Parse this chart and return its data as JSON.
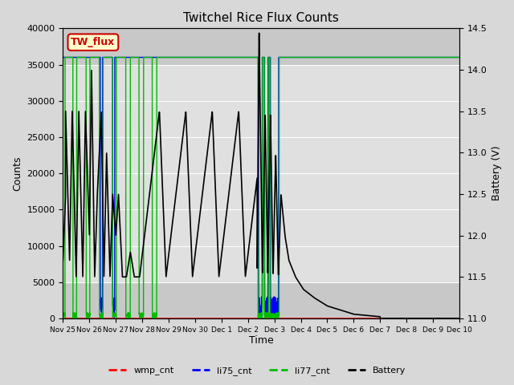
{
  "title": "Twitchel Rice Flux Counts",
  "xlabel": "Time",
  "ylabel_left": "Counts",
  "ylabel_right": "Battery (V)",
  "xlim": [
    0,
    15
  ],
  "ylim_left": [
    0,
    40000
  ],
  "ylim_right": [
    11.0,
    14.5
  ],
  "yticks_left": [
    0,
    5000,
    10000,
    15000,
    20000,
    25000,
    30000,
    35000,
    40000
  ],
  "yticks_right": [
    11.0,
    11.5,
    12.0,
    12.5,
    13.0,
    13.5,
    14.0,
    14.5
  ],
  "xtick_labels": [
    "Nov 25",
    "Nov 26",
    "Nov 27",
    "Nov 28",
    "Nov 29",
    "Nov 30",
    "Dec 1",
    "Dec 2",
    "Dec 3",
    "Dec 4",
    "Dec 5",
    "Dec 6",
    "Dec 7",
    "Dec 8",
    "Dec 9",
    "Dec 10"
  ],
  "shaded_band": [
    5000,
    35000
  ],
  "fig_facecolor": "#e8e8e8",
  "ax_facecolor": "#d0d0d0",
  "shaded_color": "#c0c0c0",
  "colors": {
    "wmp_cnt": "#ff0000",
    "li75_cnt": "#0000ff",
    "li77_cnt": "#00bb00",
    "Battery": "#000000"
  },
  "legend_box_label": "TW_flux",
  "legend_box_facecolor": "#ffffcc",
  "legend_box_edgecolor": "#cc0000",
  "green_high": 36000,
  "blue_high": 36000,
  "battery_points": [
    [
      0.0,
      11.75
    ],
    [
      0.15,
      13.2
    ],
    [
      0.3,
      19000
    ],
    [
      0.4,
      11.6
    ],
    [
      0.6,
      20000
    ],
    [
      0.7,
      11.5
    ],
    [
      0.9,
      12.5
    ],
    [
      1.0,
      13.4
    ],
    [
      1.1,
      17500
    ],
    [
      1.2,
      11.5
    ],
    [
      1.4,
      12.0
    ],
    [
      1.5,
      12.5
    ],
    [
      1.6,
      13.0
    ],
    [
      1.7,
      11.5
    ],
    [
      1.9,
      12.0
    ],
    [
      2.0,
      12.3
    ],
    [
      2.1,
      11.9
    ],
    [
      2.3,
      11.5
    ],
    [
      2.5,
      11.6
    ],
    [
      2.7,
      12.0
    ],
    [
      2.9,
      29500
    ],
    [
      3.1,
      11.5
    ],
    [
      3.3,
      30000
    ],
    [
      3.5,
      11.5
    ],
    [
      3.7,
      29000
    ],
    [
      3.9,
      11.5
    ],
    [
      4.1,
      28500
    ],
    [
      4.3,
      11.5
    ],
    [
      4.5,
      29000
    ],
    [
      4.7,
      11.5
    ],
    [
      4.9,
      30000
    ],
    [
      5.1,
      11.5
    ],
    [
      5.3,
      29500
    ],
    [
      5.5,
      11.5
    ],
    [
      5.7,
      31000
    ],
    [
      5.9,
      11.5
    ],
    [
      6.1,
      29500
    ],
    [
      6.3,
      11.5
    ],
    [
      6.5,
      32500
    ],
    [
      6.7,
      11.5
    ],
    [
      6.9,
      37500
    ],
    [
      7.1,
      11.5
    ],
    [
      7.3,
      35000
    ],
    [
      7.5,
      11.5
    ],
    [
      7.6,
      12.0
    ],
    [
      7.7,
      11.5
    ],
    [
      7.8,
      18500
    ],
    [
      7.9,
      11.5
    ],
    [
      8.0,
      14500
    ],
    [
      8.1,
      11.5
    ],
    [
      8.2,
      12.0
    ],
    [
      8.3,
      11.5
    ],
    [
      8.5,
      11.6
    ],
    [
      8.7,
      11.5
    ],
    [
      8.9,
      11.5
    ],
    [
      9.1,
      11.3
    ],
    [
      9.3,
      11.2
    ],
    [
      9.5,
      11.1
    ],
    [
      9.7,
      11.1
    ],
    [
      9.9,
      11.1
    ],
    [
      10.1,
      11.2
    ],
    [
      10.3,
      11.2
    ],
    [
      10.5,
      11.1
    ],
    [
      10.7,
      11.05
    ],
    [
      11.0,
      11.0
    ],
    [
      15.0,
      11.0
    ]
  ]
}
